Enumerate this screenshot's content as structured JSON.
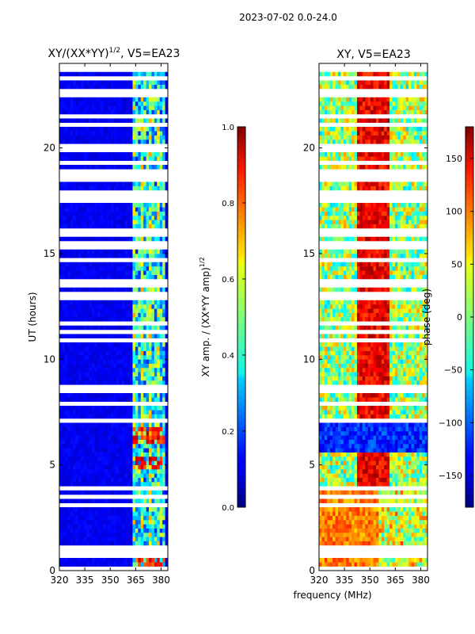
{
  "suptitle": "2023-07-02 0.0-24.0",
  "chart_data": [
    {
      "type": "heatmap",
      "title": "XY/(XX*YY)",
      "title_superscript": "1/2",
      "title_suffix": ", V5=EA23",
      "xlabel": "",
      "ylabel": "UT (hours)",
      "xlim": [
        320,
        384
      ],
      "ylim": [
        0,
        24
      ],
      "xticks": [
        "320",
        "335",
        "350",
        "365",
        "380"
      ],
      "xtick_values": [
        320,
        335,
        350,
        365,
        380
      ],
      "yticks": [
        "0",
        "5",
        "10",
        "15",
        "20"
      ],
      "ytick_values": [
        0,
        5,
        10,
        15,
        20
      ],
      "colorbar": {
        "label": "XY amp. / (XX*YY amp)",
        "label_superscript": "1/2",
        "range": [
          0.0,
          1.0
        ],
        "ticks": [
          "0.0",
          "0.2",
          "0.4",
          "0.6",
          "0.8",
          "1.0"
        ],
        "tick_values": [
          0.0,
          0.2,
          0.4,
          0.6,
          0.8,
          1.0
        ],
        "colormap": "jet"
      },
      "features": {
        "background_level": 0.08,
        "active_band_MHz": [
          363,
          383
        ],
        "active_band_level": 0.35,
        "strong_events_UT": [
          6.2,
          6.5,
          5.1,
          0.5
        ]
      }
    },
    {
      "type": "heatmap",
      "title": "XY, V5=EA23",
      "xlabel": "frequency (MHz)",
      "ylabel": "",
      "xlim": [
        320,
        384
      ],
      "ylim": [
        0,
        24
      ],
      "xticks": [
        "320",
        "335",
        "350",
        "365",
        "380"
      ],
      "xtick_values": [
        320,
        335,
        350,
        365,
        380
      ],
      "yticks": [
        "0",
        "5",
        "10",
        "15",
        "20"
      ],
      "ytick_values": [
        0,
        5,
        10,
        15,
        20
      ],
      "colorbar": {
        "label": "phase (deg)",
        "range": [
          -180,
          180
        ],
        "ticks": [
          "−150",
          "−100",
          "−50",
          "0",
          "50",
          "100",
          "150"
        ],
        "tick_values": [
          -150,
          -100,
          -50,
          0,
          50,
          100,
          150
        ],
        "colormap": "jet"
      }
    }
  ],
  "colors": {
    "background": "#ffffff",
    "blank_rows": "#ffffff",
    "axis": "#000000"
  }
}
